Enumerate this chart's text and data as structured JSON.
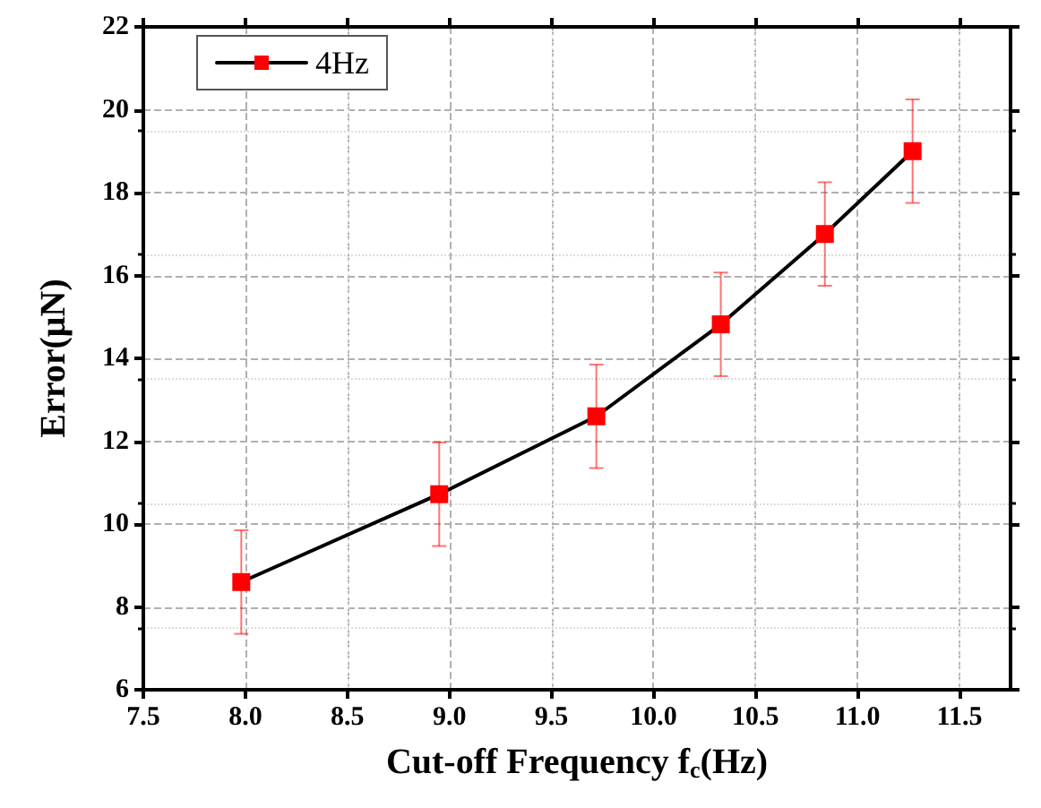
{
  "chart_data": {
    "type": "line",
    "xlabel": "Cut-off Frequency f$_{c}$(Hz)",
    "ylabel": "Error(μN)",
    "x": [
      7.98,
      8.95,
      9.72,
      10.33,
      10.84,
      11.27
    ],
    "series": [
      {
        "name": "4Hz",
        "color": "#000000",
        "colors": [
          "#ff0000",
          "#ff0000",
          "#ff0000",
          "#ff0000",
          "#ff0000",
          "#ff0000"
        ],
        "values": [
          8.6,
          10.72,
          12.6,
          14.82,
          17.0,
          19.0
        ],
        "errors": [
          1.25,
          1.25,
          1.25,
          1.25,
          1.25,
          1.25
        ]
      }
    ],
    "xlim": [
      7.5,
      11.75
    ],
    "xticks": [
      7.5,
      {
        "value": 8,
        "label": "8.0"
      },
      8.5,
      {
        "value": 9,
        "label": "9.0"
      },
      9.5,
      {
        "value": 10,
        "label": "10.0"
      },
      10.5,
      {
        "value": 11,
        "label": "11.0"
      },
      11.5
    ],
    "ylim": [
      6,
      22
    ],
    "yticks": [
      6,
      8,
      10,
      12,
      14,
      16,
      18,
      20,
      22
    ],
    "grid": true,
    "legend": "top left",
    "marker": "square",
    "line_style": "solid"
  }
}
